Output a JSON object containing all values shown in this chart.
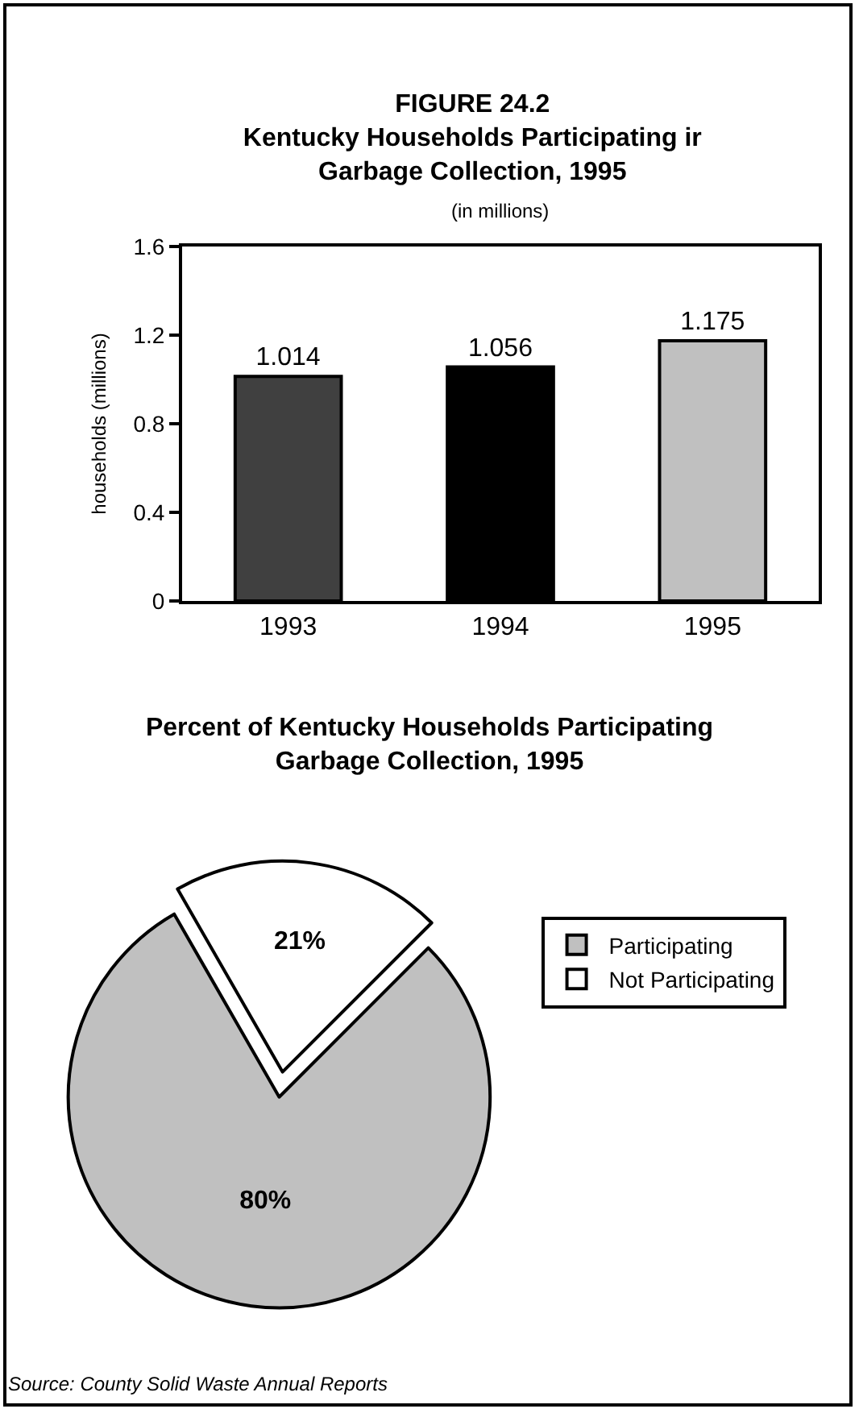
{
  "chart_data": [
    {
      "type": "bar",
      "title": "FIGURE 24.2\nKentucky Households Participating ir\nGarbage Collection, 1995",
      "subtitle": "(in millions)",
      "ylabel": "households (millions)",
      "categories": [
        "1993",
        "1994",
        "1995"
      ],
      "values": [
        1.014,
        1.056,
        1.175
      ],
      "colors": [
        "#404040",
        "#000000",
        "#c0c0c0"
      ],
      "ylim": [
        0,
        1.6
      ],
      "yticks": [
        0,
        0.4,
        0.8,
        1.2,
        1.6
      ],
      "grid": false,
      "legend": false,
      "data_labels": true
    },
    {
      "type": "pie",
      "title": "Percent of Kentucky Households Participating\nGarbage Collection, 1995",
      "categories": [
        "Participating",
        "Not Participating"
      ],
      "values": [
        80,
        21
      ],
      "colors": [
        "#c0c0c0",
        "#ffffff"
      ],
      "value_labels": [
        "80%",
        "21%"
      ],
      "legend": "right",
      "annotations": [
        "Source: County Solid Waste Annual Reports"
      ]
    }
  ]
}
